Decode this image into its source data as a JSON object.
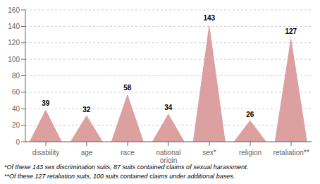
{
  "chart_data": {
    "type": "bar",
    "categories": [
      "disability",
      "age",
      "race",
      "national\norigin",
      "sex*",
      "religion",
      "retaliation**"
    ],
    "values": [
      39,
      32,
      58,
      34,
      143,
      26,
      127
    ],
    "color": "#dda0a0",
    "ylim": [
      0,
      160
    ],
    "yticks": [
      0,
      20,
      40,
      60,
      80,
      100,
      120,
      140,
      160
    ],
    "grid": true,
    "data_labels": true,
    "annotations": [
      "*Of these 143 sex discrimination suits, 87 suits contained claims of sexual harassment.",
      "**Of these 127 retaliation suits, 100 suits contained claims under additional bases."
    ]
  }
}
